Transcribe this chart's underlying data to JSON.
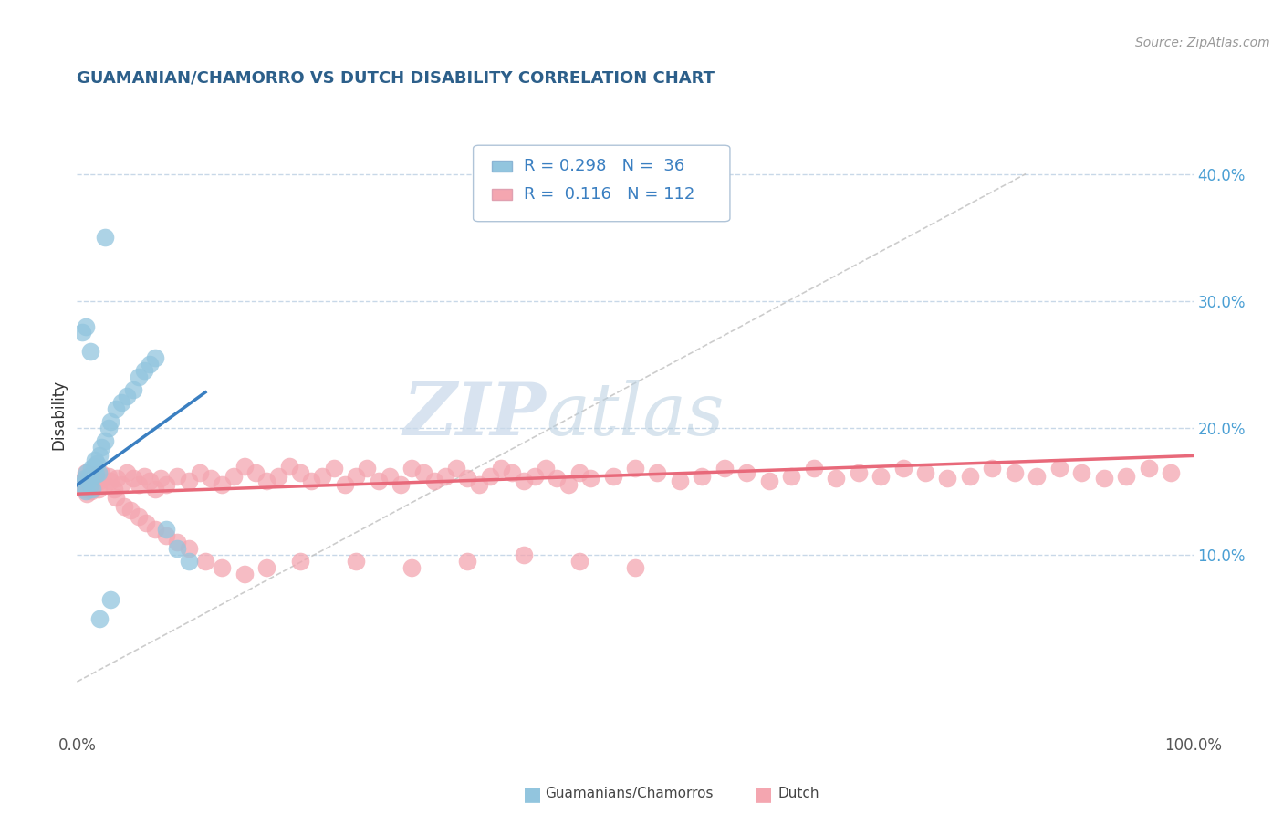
{
  "title": "GUAMANIAN/CHAMORRO VS DUTCH DISABILITY CORRELATION CHART",
  "source": "Source: ZipAtlas.com",
  "ylabel": "Disability",
  "right_yticklabels": [
    "",
    "10.0%",
    "20.0%",
    "30.0%",
    "40.0%"
  ],
  "right_ytick_vals": [
    0.0,
    0.1,
    0.2,
    0.3,
    0.4
  ],
  "xlim": [
    0.0,
    1.0
  ],
  "ylim": [
    -0.04,
    0.46
  ],
  "blue_color": "#92c5de",
  "pink_color": "#f4a6b0",
  "blue_line_color": "#3a7fc1",
  "pink_line_color": "#e8697a",
  "ref_line_color": "#c0c0c0",
  "legend_text_color": "#3a7fc1",
  "watermark_color": "#d0dce8",
  "blue_R": 0.298,
  "pink_R": 0.116,
  "blue_N": 36,
  "pink_N": 112,
  "blue_scatter_x": [
    0.005,
    0.007,
    0.008,
    0.009,
    0.01,
    0.011,
    0.012,
    0.013,
    0.014,
    0.015,
    0.016,
    0.017,
    0.018,
    0.019,
    0.02,
    0.022,
    0.025,
    0.028,
    0.03,
    0.035,
    0.04,
    0.045,
    0.05,
    0.055,
    0.06,
    0.065,
    0.07,
    0.08,
    0.09,
    0.1,
    0.005,
    0.008,
    0.012,
    0.02,
    0.03,
    0.025
  ],
  "blue_scatter_y": [
    0.155,
    0.16,
    0.15,
    0.165,
    0.158,
    0.162,
    0.155,
    0.168,
    0.152,
    0.17,
    0.175,
    0.163,
    0.172,
    0.165,
    0.178,
    0.185,
    0.19,
    0.2,
    0.205,
    0.215,
    0.22,
    0.225,
    0.23,
    0.24,
    0.245,
    0.25,
    0.255,
    0.12,
    0.105,
    0.095,
    0.275,
    0.28,
    0.26,
    0.05,
    0.065,
    0.35
  ],
  "pink_scatter_x": [
    0.005,
    0.007,
    0.008,
    0.009,
    0.01,
    0.011,
    0.012,
    0.013,
    0.014,
    0.015,
    0.017,
    0.019,
    0.02,
    0.022,
    0.025,
    0.028,
    0.03,
    0.033,
    0.036,
    0.04,
    0.045,
    0.05,
    0.055,
    0.06,
    0.065,
    0.07,
    0.075,
    0.08,
    0.09,
    0.1,
    0.11,
    0.12,
    0.13,
    0.14,
    0.15,
    0.16,
    0.17,
    0.18,
    0.19,
    0.2,
    0.21,
    0.22,
    0.23,
    0.24,
    0.25,
    0.26,
    0.27,
    0.28,
    0.29,
    0.3,
    0.31,
    0.32,
    0.33,
    0.34,
    0.35,
    0.36,
    0.37,
    0.38,
    0.39,
    0.4,
    0.41,
    0.42,
    0.43,
    0.44,
    0.45,
    0.46,
    0.48,
    0.5,
    0.52,
    0.54,
    0.56,
    0.58,
    0.6,
    0.62,
    0.64,
    0.66,
    0.68,
    0.7,
    0.72,
    0.74,
    0.76,
    0.78,
    0.8,
    0.82,
    0.84,
    0.86,
    0.88,
    0.9,
    0.92,
    0.94,
    0.96,
    0.98,
    0.035,
    0.042,
    0.048,
    0.055,
    0.062,
    0.07,
    0.08,
    0.09,
    0.1,
    0.115,
    0.13,
    0.15,
    0.17,
    0.2,
    0.25,
    0.3,
    0.35,
    0.4,
    0.45,
    0.5
  ],
  "pink_scatter_y": [
    0.158,
    0.152,
    0.165,
    0.148,
    0.162,
    0.155,
    0.16,
    0.15,
    0.163,
    0.155,
    0.16,
    0.152,
    0.158,
    0.164,
    0.155,
    0.162,
    0.158,
    0.152,
    0.16,
    0.155,
    0.165,
    0.16,
    0.155,
    0.162,
    0.158,
    0.152,
    0.16,
    0.155,
    0.162,
    0.158,
    0.165,
    0.16,
    0.155,
    0.162,
    0.17,
    0.165,
    0.158,
    0.162,
    0.17,
    0.165,
    0.158,
    0.162,
    0.168,
    0.155,
    0.162,
    0.168,
    0.158,
    0.162,
    0.155,
    0.168,
    0.165,
    0.158,
    0.162,
    0.168,
    0.16,
    0.155,
    0.162,
    0.168,
    0.165,
    0.158,
    0.162,
    0.168,
    0.16,
    0.155,
    0.165,
    0.16,
    0.162,
    0.168,
    0.165,
    0.158,
    0.162,
    0.168,
    0.165,
    0.158,
    0.162,
    0.168,
    0.16,
    0.165,
    0.162,
    0.168,
    0.165,
    0.16,
    0.162,
    0.168,
    0.165,
    0.162,
    0.168,
    0.165,
    0.16,
    0.162,
    0.168,
    0.165,
    0.145,
    0.138,
    0.135,
    0.13,
    0.125,
    0.12,
    0.115,
    0.11,
    0.105,
    0.095,
    0.09,
    0.085,
    0.09,
    0.095,
    0.095,
    0.09,
    0.095,
    0.1,
    0.095,
    0.09
  ]
}
